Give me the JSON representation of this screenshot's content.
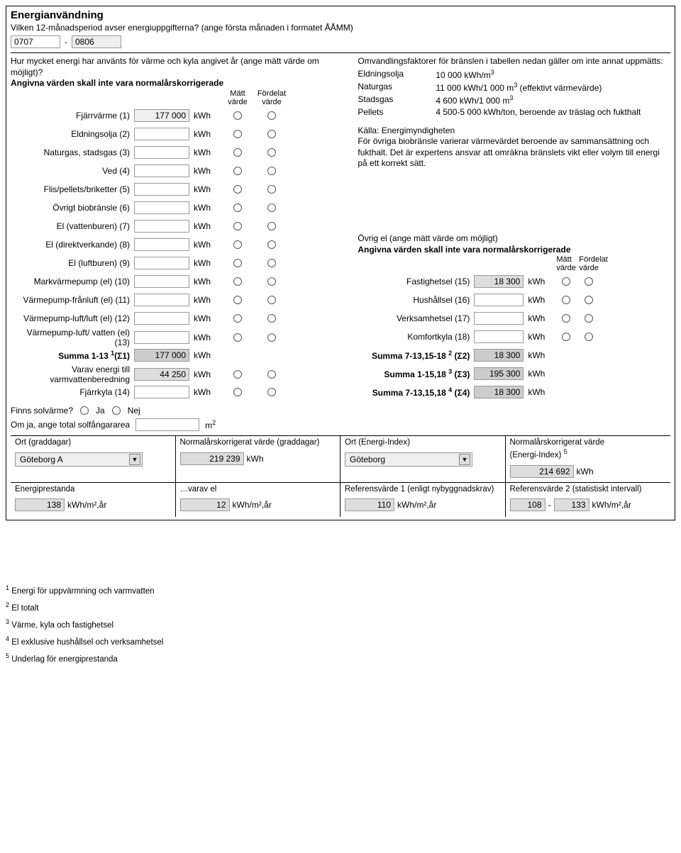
{
  "title": "Energianvändning",
  "subtitle": "Vilken 12-månadsperiod avser energiuppgifterna? (ange första månaden i formatet ÅÅMM)",
  "period": {
    "from": "0707",
    "dash": "-",
    "to": "0806"
  },
  "lead_in": "Hur mycket energi har använts för värme och kyla angivet år (ange mätt värde om möjligt)?",
  "norm_note": "Angivna värden skall inte vara normalårskorrigerade",
  "col_hdr": {
    "matt": "Mätt värde",
    "fordelat": "Fördelat värde"
  },
  "energy_rows": [
    {
      "label": "Fjärrvärme (1)",
      "value": "177 000",
      "unit": "kWh"
    },
    {
      "label": "Eldningsolja (2)",
      "value": "",
      "unit": "kWh"
    },
    {
      "label": "Naturgas, stadsgas (3)",
      "value": "",
      "unit": "kWh"
    },
    {
      "label": "Ved (4)",
      "value": "",
      "unit": "kWh"
    },
    {
      "label": "Flis/pellets/briketter (5)",
      "value": "",
      "unit": "kWh"
    },
    {
      "label": "Övrigt biobränsle (6)",
      "value": "",
      "unit": "kWh"
    },
    {
      "label": "El (vattenburen) (7)",
      "value": "",
      "unit": "kWh"
    },
    {
      "label": "El (direktverkande) (8)",
      "value": "",
      "unit": "kWh"
    },
    {
      "label": "El (luftburen) (9)",
      "value": "",
      "unit": "kWh"
    },
    {
      "label": "Markvärmepump (el) (10)",
      "value": "",
      "unit": "kWh"
    },
    {
      "label": "Värmepump-frånluft (el) (11)",
      "value": "",
      "unit": "kWh"
    },
    {
      "label": "Värmepump-luft/luft (el) (12)",
      "value": "",
      "unit": "kWh"
    },
    {
      "label": "Värmepump-luft/ vatten (el) (13)",
      "value": "",
      "unit": "kWh"
    }
  ],
  "sum1_label_a": "Summa 1-13 ",
  "sum1_label_b": "(Σ1)",
  "sum1_value": "177 000",
  "varav_label": "Varav energi till varmvattenberedning",
  "varav_value": "44 250",
  "fjarrkyla_label": "Fjärrkyla (14)",
  "fjarrkyla_value": "",
  "kwh": "kWh",
  "conv_intro": "Omvandlingsfaktorer för bränslen i tabellen nedan gäller om inte annat uppmätts:",
  "conv": [
    {
      "k": "Eldningsolja",
      "v": "10 000 kWh/m",
      "sup": "3"
    },
    {
      "k": "Naturgas",
      "v": "11 000 kWh/1 000 m",
      "sup": "3",
      "tail": " (effektivt värmevärde)"
    },
    {
      "k": "Stadsgas",
      "v": "4 600 kWh/1 000 m",
      "sup": "3"
    },
    {
      "k": "Pellets",
      "v": "4 500-5 000 kWh/ton, beroende av träslag och fukthalt"
    }
  ],
  "source": "Källa: Energimyndigheten",
  "source_note": "För övriga biobränsle varierar värmevärdet beroende av sammansättning och fukthalt. Det är expertens ansvar att omräkna bränslets vikt eller volym till energi på ett korrekt sätt.",
  "ovrig_title": "Övrig el (ange mätt värde om möjligt)",
  "ovrig_note": "Angivna värden skall inte vara normalårskorrigerade",
  "right_rows": [
    {
      "label": "Fastighetsel (15)",
      "value": "18 300",
      "unit": "kWh"
    },
    {
      "label": "Hushållsel (16)",
      "value": "",
      "unit": "kWh"
    },
    {
      "label": "Verksamhetsel (17)",
      "value": "",
      "unit": "kWh"
    },
    {
      "label": "Komfortkyla (18)",
      "value": "",
      "unit": "kWh"
    }
  ],
  "right_sums": [
    {
      "label_a": "Summa 7-13,15-18 ",
      "label_b": "2",
      "label_c": " (Σ2)",
      "value": "18 300"
    },
    {
      "label_a": "Summa 1-15,18 ",
      "label_b": "3",
      "label_c": " (Σ3)",
      "value": "195 300"
    },
    {
      "label_a": "Summa 7-13,15,18 ",
      "label_b": "4",
      "label_c": " (Σ4)",
      "value": "18 300"
    }
  ],
  "solar_q": "Finns solvärme?",
  "ja": "Ja",
  "nej": "Nej",
  "solar_area_label": "Om ja, ange total solfångararea",
  "m2": "m",
  "ort_graddagar_label": "Ort (graddagar)",
  "norm_graddagar_label": "Normalårskorrigerat värde (graddagar)",
  "ort_energiindex_label": "Ort (Energi-Index)",
  "norm_energiindex_label_a": "Normalårskorrigerat värde",
  "norm_energiindex_label_b": "(Energi-Index) ",
  "ort_graddagar_value": "Göteborg A",
  "norm_graddagar_value": "219 239",
  "ort_energiindex_value": "Göteborg",
  "norm_energiindex_value": "214 692",
  "perf_label": "Energiprestanda",
  "varav_el_label": "…varav el",
  "ref1_label": "Referensvärde 1 (enligt nybyggnadskrav)",
  "ref2_label": "Referensvärde 2 (statistiskt intervall)",
  "perf_value": "138",
  "varav_el_value": "12",
  "ref1_value": "110",
  "ref2_from": "108",
  "ref2_to": "133",
  "unit_kwhm2ar": "kWh/m²,år",
  "footnotes": [
    "Energi för uppvärmning och varmvatten",
    "El totalt",
    "Värme, kyla och fastighetsel",
    "El exklusive hushållsel och verksamhetsel",
    "Underlag för energiprestanda"
  ]
}
